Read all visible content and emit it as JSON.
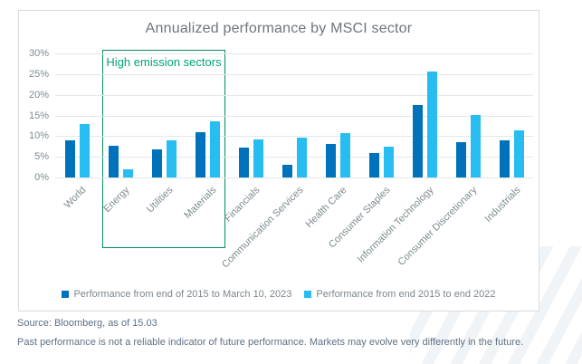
{
  "title": "Annualized performance by MSCI sector",
  "annotation": {
    "label": "High emission sectors"
  },
  "legend": [
    {
      "label": "Performance from end of 2015 to March 10, 2023",
      "color": "#0071bb"
    },
    {
      "label": "Performance from end 2015 to end 2022",
      "color": "#27bdf0"
    }
  ],
  "footer": {
    "source": "Source: Bloomberg, as of 15.03",
    "disclaimer": "Past performance is not a reliable indicator of future performance. Markets may evolve very differently in the future."
  },
  "colors": {
    "series1": "#0071bb",
    "series2": "#27bdf0",
    "annotation_green": "#008f5f",
    "gridline": "#e3e7e9",
    "axis_text": "#7d8b8e",
    "title_text": "#6e757a",
    "footer_text": "#5e7184"
  },
  "chart_data": {
    "type": "bar",
    "title": "Annualized performance by MSCI sector",
    "categories": [
      "World",
      "Energy",
      "Utilities",
      "Materials",
      "Financials",
      "Communication Services",
      "Health Care",
      "Consumer Staples",
      "Information Technology",
      "Consumer Discretionary",
      "Industrials"
    ],
    "series": [
      {
        "name": "Performance from end of 2015 to March 10, 2023",
        "color": "#0071bb",
        "values": [
          9.0,
          7.6,
          6.8,
          10.9,
          7.2,
          3.1,
          8.1,
          5.9,
          17.5,
          8.6,
          9.0
        ]
      },
      {
        "name": "Performance from end 2015 to end 2022",
        "color": "#27bdf0",
        "values": [
          13.0,
          2.0,
          9.0,
          13.6,
          9.3,
          9.6,
          10.8,
          7.4,
          25.7,
          15.2,
          11.3
        ]
      }
    ],
    "ylim": [
      0,
      30
    ],
    "yticks": [
      "0%",
      "5%",
      "10%",
      "15%",
      "20%",
      "25%",
      "30%"
    ],
    "ylabel": "",
    "xlabel": "",
    "grid": true,
    "legend_position": "bottom",
    "annotation_box": {
      "label": "High emission sectors",
      "covers_categories": [
        "Energy",
        "Utilities",
        "Materials"
      ]
    }
  }
}
